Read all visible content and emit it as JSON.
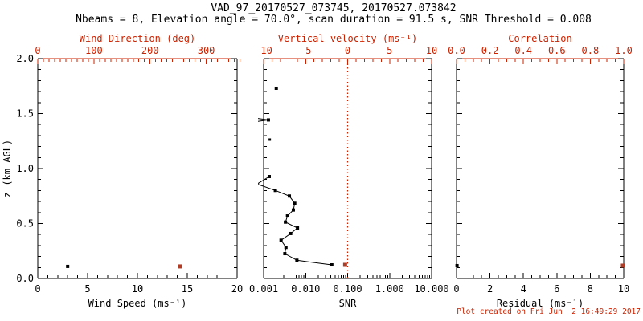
{
  "header": {
    "title": "VAD_97_20170527_073745, 20170527.073842",
    "subtitle": "Nbeams = 8, Elevation angle = 70.0°, scan duration = 91.5 s, SNR Threshold = 0.008"
  },
  "footer": {
    "created": "Plot created on Fri Jun  2 16:49:29 2017"
  },
  "colors": {
    "background": "#ffffff",
    "black": "#000000",
    "red": "#cc2200",
    "marker_red": "#b13c26"
  },
  "yaxis": {
    "label": "z (km AGL)",
    "range": [
      0,
      2
    ],
    "ticks": [
      0,
      0.5,
      1,
      1.5,
      2
    ],
    "tick_labels": [
      "0.0",
      "0.5",
      "1.0",
      "1.5",
      "2.0"
    ],
    "minor_step": 0.1
  },
  "chart_data": [
    {
      "id": "wind",
      "type": "scatter",
      "bottom_axis": {
        "label": "Wind Speed (ms⁻¹)",
        "scale": "linear",
        "range": [
          0,
          20
        ],
        "ticks": [
          0,
          5,
          10,
          15,
          20
        ],
        "tick_labels": [
          "0",
          "5",
          "10",
          "15",
          "20"
        ],
        "minor_step": 1
      },
      "top_axis": {
        "label": "Wind Direction (deg)",
        "scale": "linear",
        "range": [
          0,
          355
        ],
        "ticks": [
          0,
          100,
          200,
          300
        ],
        "tick_labels": [
          "0",
          "100",
          "200",
          "300"
        ],
        "minor_step": 10
      },
      "series": [
        {
          "name": "wind-speed-point",
          "axis": "bottom",
          "color": "black",
          "line": false,
          "marker_size": 4,
          "points": [
            [
              3.0,
              0.11
            ]
          ]
        },
        {
          "name": "wind-direction-point",
          "axis": "top",
          "color": "red",
          "line": false,
          "marker_size": 5,
          "points": [
            [
              253,
              0.11
            ]
          ]
        }
      ]
    },
    {
      "id": "snr",
      "type": "scatter",
      "bottom_axis": {
        "label": "SNR",
        "scale": "log",
        "range": [
          0.001,
          10
        ],
        "ticks": [
          0.001,
          0.01,
          0.1,
          1,
          10
        ],
        "tick_labels": [
          "0.001",
          "0.010",
          "0.100",
          "1.000",
          "10.000"
        ]
      },
      "top_axis": {
        "label": "Vertical velocity (ms⁻¹)",
        "scale": "linear",
        "range": [
          -10,
          10
        ],
        "ticks": [
          -10,
          -5,
          0,
          5,
          10
        ],
        "tick_labels": [
          "-10",
          "-5",
          "0",
          "5",
          "10"
        ],
        "minor_step": 1
      },
      "refline_top_value": 0,
      "series": [
        {
          "name": "snr-point-upper",
          "axis": "bottom",
          "color": "black",
          "line": false,
          "marker_size": 4,
          "points": [
            [
              0.002,
              1.73
            ]
          ]
        },
        {
          "name": "snr-arrow-segment",
          "axis": "bottom",
          "color": "black",
          "line": true,
          "marker_size": 4,
          "points": [
            [
              0.0007,
              1.456,
              0
            ],
            [
              0.0013,
              1.442
            ],
            [
              0.0007,
              1.428,
              0
            ]
          ]
        },
        {
          "name": "snr-point-mid",
          "axis": "bottom",
          "color": "black",
          "line": false,
          "marker_size": 3,
          "points": [
            [
              0.0014,
              1.263
            ]
          ]
        },
        {
          "name": "snr-profile",
          "axis": "bottom",
          "color": "black",
          "line": true,
          "marker_size": 4,
          "points": [
            [
              0.00136,
              0.927
            ],
            [
              0.0007,
              0.859,
              0
            ],
            [
              0.0019,
              0.801
            ],
            [
              0.0041,
              0.75
            ],
            [
              0.0055,
              0.684
            ],
            [
              0.0051,
              0.623
            ],
            [
              0.0037,
              0.569
            ],
            [
              0.0033,
              0.513
            ],
            [
              0.0064,
              0.46
            ],
            [
              0.0044,
              0.409
            ],
            [
              0.0026,
              0.348
            ],
            [
              0.0034,
              0.283
            ],
            [
              0.0032,
              0.226
            ],
            [
              0.0062,
              0.166
            ],
            [
              0.042,
              0.124
            ]
          ]
        },
        {
          "name": "vertical-velocity-point",
          "axis": "top",
          "color": "red",
          "line": false,
          "marker_size": 5,
          "points": [
            [
              -0.3,
              0.124
            ]
          ]
        }
      ]
    },
    {
      "id": "residual",
      "type": "scatter",
      "bottom_axis": {
        "label": "Residual (ms⁻¹)",
        "scale": "linear",
        "range": [
          0,
          10
        ],
        "ticks": [
          0,
          2,
          4,
          6,
          8,
          10
        ],
        "tick_labels": [
          "0",
          "2",
          "4",
          "6",
          "8",
          "10"
        ],
        "minor_step": 0.5
      },
      "top_axis": {
        "label": "Correlation",
        "scale": "linear",
        "range": [
          0,
          1
        ],
        "ticks": [
          0,
          0.2,
          0.4,
          0.6,
          0.8,
          1
        ],
        "tick_labels": [
          "0.0",
          "0.2",
          "0.4",
          "0.6",
          "0.8",
          "1.0"
        ],
        "minor_step": 0.05
      },
      "series": [
        {
          "name": "residual-point",
          "axis": "bottom",
          "color": "black",
          "line": false,
          "marker_size": 4,
          "points": [
            [
              0.03,
              0.117
            ]
          ]
        },
        {
          "name": "correlation-point",
          "axis": "top",
          "color": "red",
          "line": false,
          "marker_size": 5,
          "points": [
            [
              0.995,
              0.117
            ]
          ]
        }
      ]
    }
  ]
}
